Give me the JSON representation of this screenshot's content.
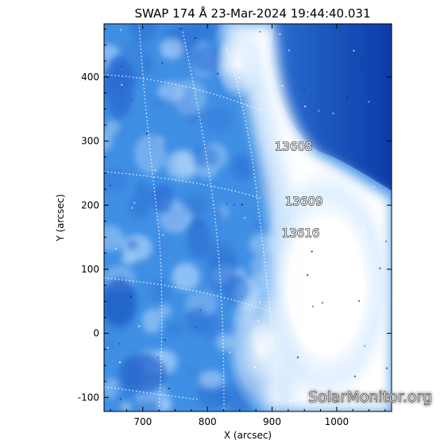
{
  "title": "SWAP 174 Å 23-Mar-2024 19:44:40.031",
  "xlabel": "X (arcsec)",
  "ylabel": "Y (arcsec)",
  "x_ticks": [
    {
      "value": 700,
      "label": "700"
    },
    {
      "value": 800,
      "label": "800"
    },
    {
      "value": 900,
      "label": "900"
    },
    {
      "value": 1000,
      "label": "1000"
    }
  ],
  "y_ticks": [
    {
      "value": 400,
      "label": "400"
    },
    {
      "value": 300,
      "label": "300"
    },
    {
      "value": 200,
      "label": "200"
    },
    {
      "value": 100,
      "label": "100"
    },
    {
      "value": 0,
      "label": "0"
    },
    {
      "value": -100,
      "label": "-100"
    }
  ],
  "xlim": [
    640,
    1085
  ],
  "ylim": [
    -122,
    483
  ],
  "active_regions": [
    {
      "label": "13608",
      "x": 904,
      "y": 285
    },
    {
      "label": "13609",
      "x": 920,
      "y": 200
    },
    {
      "label": "13616",
      "x": 915,
      "y": 150
    }
  ],
  "watermark": "SolarMonitor.org",
  "colors": {
    "image_base": "#3d8fe6",
    "image_dark": "#0b3ca8",
    "image_bright": "#ffffff",
    "grid_line": "#ffffff",
    "axis": "#000000"
  }
}
